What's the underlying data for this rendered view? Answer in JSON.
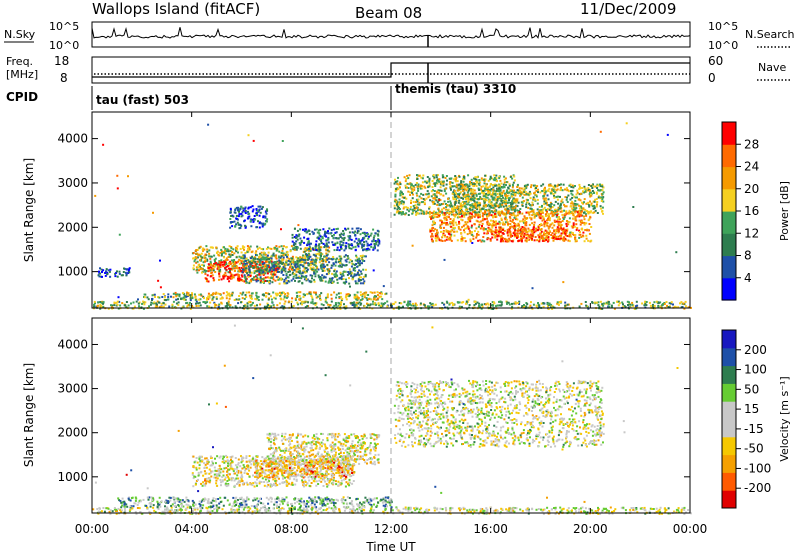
{
  "header": {
    "station": "Wallops Island (fitACF)",
    "beam": "Beam 08",
    "date": "11/Dec/2009"
  },
  "nsky_panel": {
    "left_label": "N.Sky",
    "left_ticks": [
      "10^5",
      "10^0"
    ],
    "right_ticks": [
      "10^5",
      "10^0"
    ],
    "right_label": "N.Search"
  },
  "freq_panel": {
    "left_label_1": "Freq.",
    "left_label_2": "[MHz]",
    "left_ticks": [
      "18",
      "8"
    ],
    "right_ticks": [
      "60",
      "0"
    ],
    "right_label": "Nave"
  },
  "cpid": {
    "label": "CPID",
    "mode1": "tau (fast) 503",
    "mode2": "themis (tau) 3310"
  },
  "colors": {
    "power": [
      "#0000ff",
      "#1e50a8",
      "#2e7d4f",
      "#3fa35a",
      "#f5d020",
      "#f59a00",
      "#ff6a00",
      "#ff0000"
    ],
    "velocity": [
      "#e00000",
      "#ff5a00",
      "#f5a000",
      "#f5c800",
      "#c8c8c8",
      "#c8c8c8",
      "#66cc33",
      "#2e7d4f",
      "#1e50a8",
      "#1818c0"
    ]
  },
  "power_colorbar": {
    "title": "Power [dB]",
    "ticks": [
      "28",
      "24",
      "20",
      "16",
      "12",
      "8",
      "4"
    ]
  },
  "velocity_colorbar": {
    "title": "Velocity [m s⁻¹]",
    "ticks": [
      "200",
      "100",
      "50",
      "15",
      "-15",
      "-50",
      "-100",
      "-200"
    ]
  },
  "xaxis": {
    "title": "Time UT",
    "ticks": [
      "00:00",
      "04:00",
      "08:00",
      "12:00",
      "16:00",
      "20:00",
      "00:00"
    ]
  },
  "chart_data": [
    {
      "type": "line",
      "panel": "nsky_nsearch",
      "x_range_hours": [
        0,
        24
      ],
      "series": [
        {
          "name": "N.Sky",
          "style": "solid",
          "level": "near 10^0 baseline, spikes to ~10^1"
        },
        {
          "name": "N.Search",
          "style": "dotted",
          "level": "near baseline"
        }
      ]
    },
    {
      "type": "line",
      "panel": "freq_nave",
      "series": [
        {
          "name": "Freq.",
          "style": "dotted",
          "unit": "MHz",
          "x": [
            0,
            12,
            24
          ],
          "y": [
            10,
            10,
            10
          ]
        },
        {
          "name": "Nave",
          "style": "solid",
          "x": [
            0,
            12,
            12,
            24
          ],
          "y": [
            8,
            8,
            42,
            42
          ]
        }
      ],
      "cpid_change_hour": 12,
      "marker_hour": 13.5
    },
    {
      "type": "heatmap",
      "panel": "power",
      "ylabel": "Slant Range [km]",
      "xlabel": "Time UT",
      "x_range_hours": [
        0,
        24
      ],
      "ylim": [
        180,
        4600
      ],
      "yticks": [
        1000,
        2000,
        3000,
        4000
      ],
      "color_range_db": [
        0,
        32
      ],
      "regions": [
        {
          "t0": 0.0,
          "t1": 24.0,
          "r0": 180,
          "r1": 350,
          "level": 0.45
        },
        {
          "t0": 0.2,
          "t1": 1.5,
          "r0": 900,
          "r1": 1100,
          "level": 0.15
        },
        {
          "t0": 1.8,
          "t1": 4.0,
          "r0": 380,
          "r1": 520,
          "level": 0.35
        },
        {
          "t0": 3.2,
          "t1": 11.8,
          "r0": 380,
          "r1": 560,
          "level": 0.55
        },
        {
          "t0": 4.0,
          "t1": 9.5,
          "r0": 1000,
          "r1": 1600,
          "level": 0.55
        },
        {
          "t0": 4.5,
          "t1": 7.5,
          "r0": 800,
          "r1": 1250,
          "level": 0.9
        },
        {
          "t0": 6.0,
          "t1": 11.0,
          "r0": 750,
          "r1": 1400,
          "level": 0.35
        },
        {
          "t0": 8.0,
          "t1": 11.5,
          "r0": 1500,
          "r1": 2000,
          "level": 0.25
        },
        {
          "t0": 5.5,
          "t1": 7.0,
          "r0": 2000,
          "r1": 2500,
          "level": 0.2
        },
        {
          "t0": 12.1,
          "t1": 17.0,
          "r0": 2300,
          "r1": 3200,
          "level": 0.5
        },
        {
          "t0": 14.5,
          "t1": 20.5,
          "r0": 2300,
          "r1": 3000,
          "level": 0.5
        },
        {
          "t0": 13.5,
          "t1": 20.0,
          "r0": 1700,
          "r1": 2400,
          "level": 0.7
        },
        {
          "t0": 16.0,
          "t1": 19.0,
          "r0": 1700,
          "r1": 2000,
          "level": 0.85
        }
      ]
    },
    {
      "type": "heatmap",
      "panel": "velocity",
      "ylabel": "Slant Range [km]",
      "xlabel": "Time UT",
      "x_range_hours": [
        0,
        24
      ],
      "ylim": [
        180,
        4600
      ],
      "yticks": [
        1000,
        2000,
        3000,
        4000
      ],
      "color_range_ms": [
        -200,
        200
      ],
      "regions": [
        {
          "t0": 0.0,
          "t1": 24.0,
          "r0": 180,
          "r1": 330,
          "level": 0.5
        },
        {
          "t0": 1.0,
          "t1": 12.0,
          "r0": 330,
          "r1": 560,
          "level": 0.65
        },
        {
          "t0": 4.0,
          "t1": 10.5,
          "r0": 800,
          "r1": 1500,
          "level": 0.45
        },
        {
          "t0": 6.5,
          "t1": 10.5,
          "r0": 1000,
          "r1": 1400,
          "level": 0.3
        },
        {
          "t0": 7.0,
          "t1": 11.5,
          "r0": 1300,
          "r1": 2000,
          "level": 0.45
        },
        {
          "t0": 12.1,
          "t1": 20.5,
          "r0": 1700,
          "r1": 3200,
          "level": 0.5
        }
      ]
    }
  ]
}
